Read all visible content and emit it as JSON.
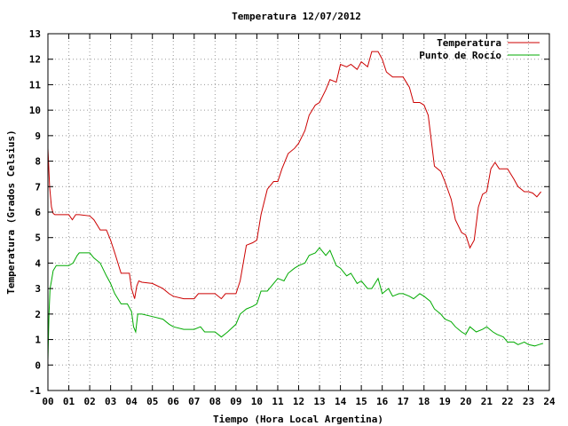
{
  "chart_data": {
    "type": "line",
    "title": "Temperatura 12/07/2012",
    "xlabel": "Tiempo (Hora Local Argentina)",
    "ylabel": "Temperatura (Grados Celsius)",
    "xlim": [
      0,
      24
    ],
    "ylim": [
      -1,
      13
    ],
    "x_ticks": [
      0,
      1,
      2,
      3,
      4,
      5,
      6,
      7,
      8,
      9,
      10,
      11,
      12,
      13,
      14,
      15,
      16,
      17,
      18,
      19,
      20,
      21,
      22,
      23,
      24
    ],
    "x_tick_labels": [
      "00",
      "01",
      "02",
      "03",
      "04",
      "05",
      "06",
      "07",
      "08",
      "09",
      "10",
      "11",
      "12",
      "13",
      "14",
      "15",
      "16",
      "17",
      "18",
      "19",
      "20",
      "21",
      "22",
      "23",
      "24"
    ],
    "y_ticks": [
      -1,
      0,
      1,
      2,
      3,
      4,
      5,
      6,
      7,
      8,
      9,
      10,
      11,
      12,
      13
    ],
    "y_tick_labels": [
      "-1",
      "0",
      "1",
      "2",
      "3",
      "4",
      "5",
      "6",
      "7",
      "8",
      "9",
      "10",
      "11",
      "12",
      "13"
    ],
    "grid": true,
    "legend_position": "top-right",
    "series": [
      {
        "name": "Temperatura",
        "color": "#cc0000",
        "x": [
          0.0,
          0.08,
          0.17,
          0.25,
          0.33,
          0.5,
          1.0,
          1.17,
          1.33,
          1.5,
          2.0,
          2.2,
          2.5,
          2.8,
          3.0,
          3.2,
          3.5,
          3.9,
          4.0,
          4.15,
          4.25,
          4.35,
          4.5,
          5.0,
          5.5,
          5.8,
          6.0,
          6.5,
          7.0,
          7.2,
          7.5,
          8.0,
          8.3,
          8.5,
          9.0,
          9.2,
          9.5,
          9.8,
          10.0,
          10.2,
          10.5,
          10.8,
          11.0,
          11.2,
          11.5,
          11.8,
          12.0,
          12.3,
          12.5,
          12.8,
          13.0,
          13.3,
          13.5,
          13.8,
          14.0,
          14.3,
          14.5,
          14.8,
          15.0,
          15.3,
          15.5,
          15.8,
          16.0,
          16.2,
          16.5,
          16.8,
          17.0,
          17.3,
          17.5,
          17.8,
          18.0,
          18.2,
          18.5,
          18.8,
          19.0,
          19.3,
          19.5,
          19.8,
          20.0,
          20.2,
          20.4,
          20.6,
          20.8,
          21.0,
          21.2,
          21.4,
          21.6,
          21.8,
          22.0,
          22.3,
          22.5,
          22.8,
          23.0,
          23.2,
          23.4,
          23.6
        ],
        "y": [
          8.5,
          7.0,
          6.2,
          5.95,
          5.9,
          5.9,
          5.9,
          5.7,
          5.9,
          5.9,
          5.85,
          5.7,
          5.3,
          5.3,
          4.9,
          4.4,
          3.6,
          3.6,
          3.0,
          2.6,
          3.1,
          3.3,
          3.25,
          3.2,
          3.0,
          2.8,
          2.7,
          2.6,
          2.6,
          2.8,
          2.8,
          2.8,
          2.6,
          2.8,
          2.8,
          3.3,
          4.7,
          4.8,
          4.9,
          5.9,
          6.9,
          7.2,
          7.2,
          7.7,
          8.3,
          8.5,
          8.7,
          9.2,
          9.8,
          10.2,
          10.3,
          10.8,
          11.2,
          11.1,
          11.8,
          11.7,
          11.8,
          11.6,
          11.9,
          11.7,
          12.3,
          12.3,
          12.0,
          11.5,
          11.3,
          11.3,
          11.3,
          10.9,
          10.3,
          10.3,
          10.2,
          9.8,
          7.8,
          7.6,
          7.2,
          6.5,
          5.7,
          5.2,
          5.1,
          4.6,
          4.9,
          6.2,
          6.7,
          6.8,
          7.7,
          7.95,
          7.7,
          7.7,
          7.7,
          7.3,
          7.0,
          6.8,
          6.8,
          6.75,
          6.6,
          6.8
        ]
      },
      {
        "name": "Punto de Rocío",
        "color": "#00aa00",
        "x": [
          0.0,
          0.05,
          0.1,
          0.17,
          0.25,
          0.4,
          0.5,
          1.0,
          1.2,
          1.4,
          1.5,
          2.0,
          2.2,
          2.5,
          2.8,
          3.0,
          3.2,
          3.5,
          3.8,
          4.0,
          4.1,
          4.2,
          4.3,
          4.5,
          5.0,
          5.5,
          5.8,
          6.0,
          6.5,
          7.0,
          7.3,
          7.5,
          8.0,
          8.3,
          8.6,
          9.0,
          9.2,
          9.5,
          9.8,
          10.0,
          10.2,
          10.5,
          10.8,
          11.0,
          11.3,
          11.5,
          11.8,
          12.0,
          12.3,
          12.5,
          12.8,
          13.0,
          13.3,
          13.5,
          13.8,
          14.0,
          14.3,
          14.5,
          14.8,
          15.0,
          15.3,
          15.5,
          15.8,
          16.0,
          16.3,
          16.5,
          16.8,
          17.0,
          17.3,
          17.5,
          17.8,
          18.0,
          18.3,
          18.5,
          18.8,
          19.0,
          19.3,
          19.5,
          19.8,
          20.0,
          20.2,
          20.5,
          20.8,
          21.0,
          21.3,
          21.5,
          21.8,
          22.0,
          22.3,
          22.5,
          22.8,
          23.0,
          23.3,
          23.5,
          23.7
        ],
        "y": [
          0.2,
          2.0,
          3.0,
          3.3,
          3.7,
          3.9,
          3.9,
          3.9,
          4.0,
          4.3,
          4.4,
          4.4,
          4.2,
          4.0,
          3.5,
          3.2,
          2.8,
          2.4,
          2.4,
          2.1,
          1.5,
          1.3,
          2.0,
          2.0,
          1.9,
          1.8,
          1.6,
          1.5,
          1.4,
          1.4,
          1.5,
          1.3,
          1.3,
          1.1,
          1.3,
          1.6,
          2.0,
          2.2,
          2.3,
          2.4,
          2.9,
          2.9,
          3.2,
          3.4,
          3.3,
          3.6,
          3.8,
          3.9,
          4.0,
          4.3,
          4.4,
          4.6,
          4.3,
          4.5,
          3.9,
          3.8,
          3.5,
          3.6,
          3.2,
          3.3,
          3.0,
          3.0,
          3.4,
          2.8,
          3.0,
          2.7,
          2.8,
          2.8,
          2.7,
          2.6,
          2.8,
          2.7,
          2.5,
          2.2,
          2.0,
          1.8,
          1.7,
          1.5,
          1.3,
          1.2,
          1.5,
          1.3,
          1.4,
          1.5,
          1.3,
          1.2,
          1.1,
          0.9,
          0.9,
          0.8,
          0.9,
          0.8,
          0.75,
          0.8,
          0.85
        ]
      }
    ]
  }
}
